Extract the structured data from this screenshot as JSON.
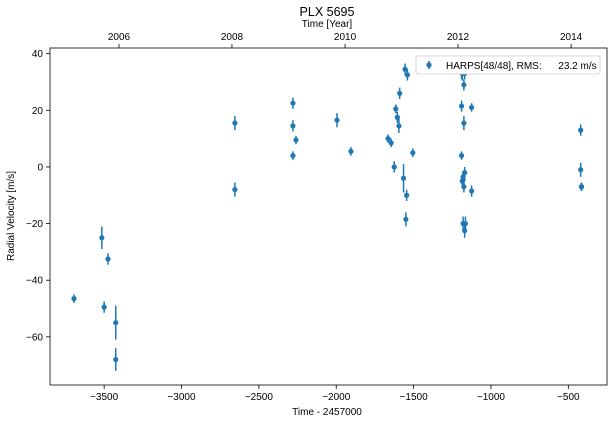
{
  "chart_data": {
    "type": "scatter",
    "title": "PLX 5695",
    "xlabel": "Time - 2457000",
    "ylabel": "Radial Velocity [m/s]",
    "top_xlabel": "Time [Year]",
    "xlim": [
      -3850,
      -250
    ],
    "ylim": [
      -77,
      42
    ],
    "xticks": [
      -3500,
      -3000,
      -2500,
      -2000,
      -1500,
      -1000,
      -500
    ],
    "xtick_labels": [
      "−3500",
      "−3000",
      "−2500",
      "−2000",
      "−1500",
      "−1000",
      "−500"
    ],
    "yticks": [
      -60,
      -40,
      -20,
      0,
      20,
      40
    ],
    "ytick_labels": [
      "−60",
      "−40",
      "−20",
      "0",
      "20",
      "40"
    ],
    "top_xticks": [
      -3404,
      -2674,
      -1943,
      -1213,
      -482
    ],
    "top_xtick_labels": [
      "2006",
      "2008",
      "2010",
      "2012",
      "2014"
    ],
    "grid": false,
    "legend_position": "top-right",
    "colors": {
      "marker": "#1f77b4"
    },
    "series": [
      {
        "name": "HARPS[48/48], RMS:      23.2 m/s",
        "x": [
          -3695,
          -3515,
          -3500,
          -3475,
          -3425,
          -3425,
          -2655,
          -2655,
          -2280,
          -2280,
          -2280,
          -2260,
          -1995,
          -1905,
          -1665,
          -1645,
          -1625,
          -1615,
          -1605,
          -1595,
          -1590,
          -1565,
          -1555,
          -1550,
          -1545,
          -1540,
          -1505,
          -1190,
          -1190,
          -1190,
          -1185,
          -1185,
          -1180,
          -1180,
          -1180,
          -1175,
          -1175,
          -1175,
          -1170,
          -1170,
          -1170,
          -1165,
          -1125,
          -1125,
          -420,
          -420,
          -415,
          -415
        ],
        "y": [
          -46.5,
          -25,
          -49.5,
          -32.5,
          -55,
          -68,
          15.5,
          -8,
          22.5,
          14.5,
          4,
          9.5,
          16.5,
          5.5,
          10,
          8.5,
          0,
          20.5,
          17.5,
          14.5,
          26,
          -4,
          34.5,
          -18.5,
          -10,
          32.5,
          5,
          33.5,
          21.5,
          4,
          33,
          -5,
          -4.5,
          -20,
          -3.5,
          29,
          15.5,
          -7,
          33,
          -22.5,
          -2,
          -20,
          21,
          -8.5,
          13,
          -1,
          -7,
          -7
        ],
        "yerr": [
          1.5,
          4,
          2,
          2,
          6,
          4,
          2.5,
          2.5,
          2,
          2,
          1.5,
          1.5,
          2.5,
          1.5,
          1.5,
          1.5,
          2,
          1.5,
          2,
          2.5,
          2,
          5,
          2,
          2.5,
          2,
          2,
          1.5,
          2.5,
          2,
          1.5,
          2.5,
          2,
          2.5,
          2.5,
          2,
          2,
          2.5,
          2,
          2,
          2.5,
          2,
          2.5,
          1.5,
          2,
          2,
          2.5,
          1.5,
          1.5
        ]
      }
    ]
  }
}
